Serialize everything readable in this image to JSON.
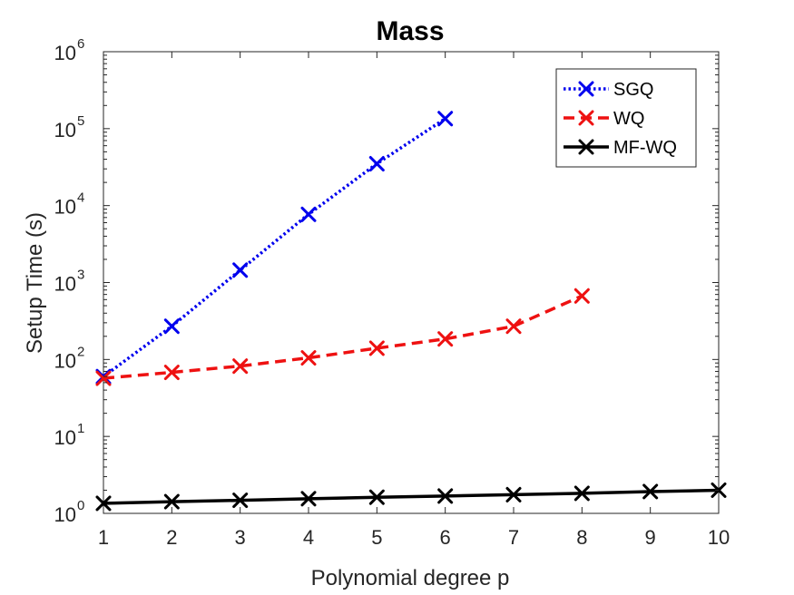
{
  "chart_data": {
    "type": "line",
    "title": "Mass",
    "xlabel": "Polynomial degree p",
    "ylabel": "Setup Time (s)",
    "xscale": "linear",
    "yscale": "log",
    "xlim": [
      1,
      10
    ],
    "ylim": [
      1,
      1000000
    ],
    "xticks": [
      "1",
      "2",
      "3",
      "4",
      "5",
      "6",
      "7",
      "8",
      "9",
      "10"
    ],
    "yticks": [
      {
        "value": 1,
        "base": "10",
        "exp": "0"
      },
      {
        "value": 10,
        "base": "10",
        "exp": "1"
      },
      {
        "value": 100,
        "base": "10",
        "exp": "2"
      },
      {
        "value": 1000,
        "base": "10",
        "exp": "3"
      },
      {
        "value": 10000,
        "base": "10",
        "exp": "4"
      },
      {
        "value": 100000,
        "base": "10",
        "exp": "5"
      },
      {
        "value": 1000000,
        "base": "10",
        "exp": "6"
      }
    ],
    "grid": false,
    "legend_position": "top-right",
    "series": [
      {
        "name": "SGQ",
        "color": "#0000ee",
        "style": "dotted",
        "marker": "x",
        "x": [
          1,
          2,
          3,
          4,
          5,
          6
        ],
        "y": [
          60,
          270,
          1450,
          7700,
          35000,
          135000
        ]
      },
      {
        "name": "WQ",
        "color": "#ee1111",
        "style": "dashed",
        "marker": "x",
        "x": [
          1,
          2,
          3,
          4,
          5,
          6,
          7,
          8
        ],
        "y": [
          57,
          68,
          82,
          105,
          140,
          185,
          270,
          670
        ]
      },
      {
        "name": "MF-WQ",
        "color": "#000000",
        "style": "solid",
        "marker": "x",
        "x": [
          1,
          2,
          3,
          4,
          5,
          6,
          7,
          8,
          9,
          10
        ],
        "y": [
          1.35,
          1.42,
          1.48,
          1.55,
          1.62,
          1.68,
          1.75,
          1.82,
          1.92,
          2.0
        ]
      }
    ]
  }
}
